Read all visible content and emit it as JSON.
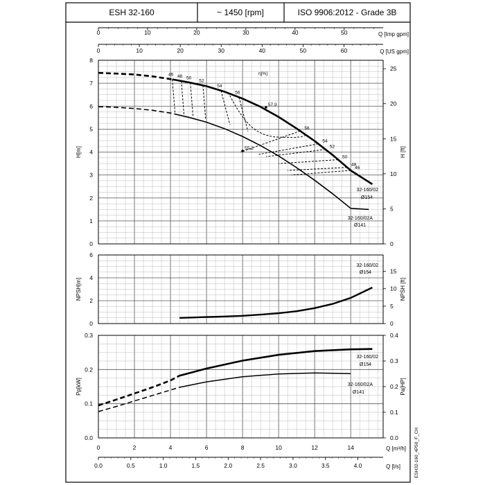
{
  "header": {
    "model": "ESH 32-160",
    "speed": "~ 1450 [rpm]",
    "standard": "ISO 9906:2012 - Grade 3B"
  },
  "drawing_code": "ESH32-160_4P50_F_CH",
  "chart_data": [
    {
      "type": "line",
      "panel": "head",
      "ylabel_left": "H[m]",
      "ylabel_right": "H [ft]",
      "efficiency_label": "η[%]",
      "x_unit": "Q [m³/h]",
      "xlim": [
        0,
        15.8
      ],
      "ylim": [
        0,
        8
      ],
      "ylim_right": [
        0,
        26.2
      ],
      "yticks": [
        0,
        1,
        2,
        3,
        4,
        5,
        6,
        7,
        8
      ],
      "yticks_right": [
        0,
        5,
        10,
        15,
        20,
        25
      ],
      "top_axes": [
        {
          "label": "Q [Imp gpm]",
          "ticks": [
            0,
            10,
            20,
            30,
            40,
            50
          ]
        },
        {
          "label": "Q [US gpm]",
          "ticks": [
            0,
            10,
            20,
            30,
            40,
            50,
            60
          ]
        }
      ],
      "series": [
        {
          "name": "32-160/02",
          "subtitle": "Ø154",
          "x": [
            0,
            1,
            2,
            3,
            4,
            5,
            6,
            7,
            8,
            9,
            10,
            11,
            12,
            13,
            14,
            15.2
          ],
          "y": [
            7.45,
            7.42,
            7.38,
            7.3,
            7.18,
            7.04,
            6.87,
            6.63,
            6.33,
            5.97,
            5.53,
            5.03,
            4.48,
            3.87,
            3.2,
            2.6
          ],
          "dashed_until": 4.1
        },
        {
          "name": "32-160/02A",
          "subtitle": "Ø141",
          "x": [
            0,
            1,
            2,
            3,
            4,
            5,
            6,
            7,
            8,
            9,
            10,
            11,
            12,
            13,
            14,
            15
          ],
          "y": [
            5.98,
            5.95,
            5.9,
            5.82,
            5.7,
            5.52,
            5.3,
            5.02,
            4.68,
            4.28,
            3.83,
            3.32,
            2.77,
            2.18,
            1.55,
            1.5
          ],
          "dashed_until": 4.2
        }
      ],
      "efficiency_curves": [
        {
          "label": "46",
          "q_left": 4.1,
          "q_right": 14.0,
          "lower_h_left": 5.7,
          "lower_h_right": 3.0
        },
        {
          "label": "48",
          "q_left": 4.6,
          "q_right": 13.8,
          "lower_h_left": 5.6,
          "lower_h_right": 3.2
        },
        {
          "label": "50",
          "q_left": 5.1,
          "q_right": 13.3,
          "lower_h_left": 5.55,
          "lower_h_right": 3.5
        },
        {
          "label": "52",
          "q_left": 5.8,
          "q_right": 12.6,
          "lower_h_left": 5.45,
          "lower_h_right": 3.8
        },
        {
          "label": "54",
          "q_left": 6.8,
          "q_right": 12.2,
          "lower_h_left": 5.2,
          "lower_h_right": 3.9
        },
        {
          "label": "56",
          "q_left": 7.8,
          "q_right": 11.2,
          "lower_h_left": 4.9,
          "lower_h_right": 4.0
        }
      ],
      "annotations": [
        {
          "text": "57.9",
          "x": 9.3,
          "y": 5.95
        },
        {
          "text": "55.2",
          "x": 8.0,
          "y": 4.05
        }
      ]
    },
    {
      "type": "line",
      "panel": "npsh",
      "ylabel_left": "NPSH[m]",
      "ylabel_right": "NPSH [ft]",
      "xlim": [
        0,
        15.8
      ],
      "ylim": [
        0,
        6
      ],
      "ylim_right": [
        0,
        19.7
      ],
      "yticks": [
        0,
        2,
        4,
        6
      ],
      "yticks_right": [
        0,
        5,
        10,
        15
      ],
      "series": [
        {
          "name": "32-160/02",
          "subtitle": "Ø154",
          "x": [
            4.5,
            5,
            6,
            7,
            8,
            9,
            10,
            11,
            12,
            13,
            14,
            15.2
          ],
          "y": [
            0.5,
            0.52,
            0.57,
            0.62,
            0.68,
            0.78,
            0.9,
            1.08,
            1.35,
            1.72,
            2.25,
            3.15
          ]
        }
      ]
    },
    {
      "type": "line",
      "panel": "power",
      "ylabel_left": "Pp[kW]",
      "ylabel_right": "Pa[HP]",
      "xlabel": "Q [m³/h]",
      "xlabel_2": "Q [l/s]",
      "xlim": [
        0,
        15.8
      ],
      "ylim": [
        0,
        0.3
      ],
      "ylim_right": [
        0,
        0.4
      ],
      "yticks": [
        0.0,
        0.1,
        0.2,
        0.3
      ],
      "yticks_right": [
        0.0,
        0.1,
        0.2,
        0.3,
        0.4
      ],
      "xticks": [
        0,
        2,
        4,
        6,
        8,
        10,
        12,
        14
      ],
      "xticks_ls": [
        0,
        0.5,
        1.0,
        1.5,
        2.0,
        2.5,
        3.0,
        3.5,
        4.0
      ],
      "series": [
        {
          "name": "32-160/02",
          "subtitle": "Ø154",
          "x": [
            0,
            1,
            2,
            3,
            4,
            4.5,
            6,
            8,
            10,
            12,
            14,
            15.2
          ],
          "y": [
            0.095,
            0.112,
            0.13,
            0.148,
            0.168,
            0.182,
            0.203,
            0.226,
            0.243,
            0.254,
            0.259,
            0.26
          ],
          "dashed_until": 4.5
        },
        {
          "name": "32-160/02A",
          "subtitle": "Ø141",
          "x": [
            0,
            1,
            2,
            3,
            4,
            4.5,
            6,
            8,
            10,
            12,
            14
          ],
          "y": [
            0.077,
            0.092,
            0.108,
            0.124,
            0.14,
            0.148,
            0.164,
            0.179,
            0.187,
            0.19,
            0.188
          ],
          "dashed_until": 4.5
        }
      ]
    }
  ]
}
